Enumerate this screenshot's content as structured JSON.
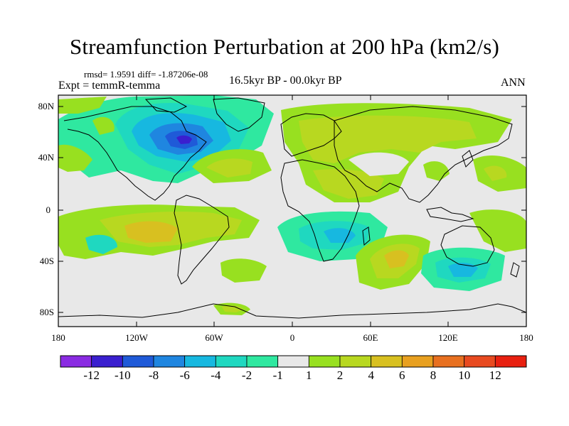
{
  "title": "Streamfunction Perturbation at 200 hPa (km2/s)",
  "stats": {
    "rmsd_text": "rmsd= 1.9591 diff= -1.87206e-08"
  },
  "experiment": "Expt = temmR-temma",
  "period": "16.5kyr BP - 00.0kyr BP",
  "season": "ANN",
  "axes": {
    "lat_labels": [
      "80N",
      "40N",
      "0",
      "40S",
      "80S"
    ],
    "lon_labels": [
      "180",
      "120W",
      "60W",
      "0",
      "60E",
      "120E",
      "180"
    ]
  },
  "colorbar": {
    "labels": [
      "-12",
      "-10",
      "-8",
      "-6",
      "-4",
      "-2",
      "-1",
      "1",
      "2",
      "4",
      "6",
      "8",
      "10",
      "12"
    ],
    "colors": [
      "#8a2be2",
      "#3a1fcf",
      "#1f5ad8",
      "#1f86e0",
      "#17b8e0",
      "#1fd8c0",
      "#2fe8a0",
      "#e8e8e8",
      "#98e020",
      "#b8d820",
      "#d8c020",
      "#e8a020",
      "#e87020",
      "#e84a20",
      "#e82010"
    ]
  },
  "chart_data": {
    "type": "contour-map",
    "variable": "Streamfunction Perturbation at 200 hPa (km2/s)",
    "levels": [
      -12,
      -10,
      -8,
      -6,
      -4,
      -2,
      -1,
      1,
      2,
      4,
      6,
      8,
      10,
      12
    ],
    "lon_range": [
      -180,
      180
    ],
    "lat_range": [
      -90,
      90
    ],
    "features": [
      {
        "region": "North America / NW Atlantic",
        "sign": "negative",
        "min": -9
      },
      {
        "region": "Eurasia mid-latitudes",
        "sign": "positive",
        "max": 3
      },
      {
        "region": "South Pacific",
        "sign": "positive",
        "max": 5
      },
      {
        "region": "Southern Africa / S Atlantic",
        "sign": "negative",
        "min": -3
      },
      {
        "region": "South Indian Ocean",
        "sign": "positive",
        "max": 5
      },
      {
        "region": "SE Indian Ocean / S Australia",
        "sign": "negative",
        "min": -3
      }
    ]
  }
}
